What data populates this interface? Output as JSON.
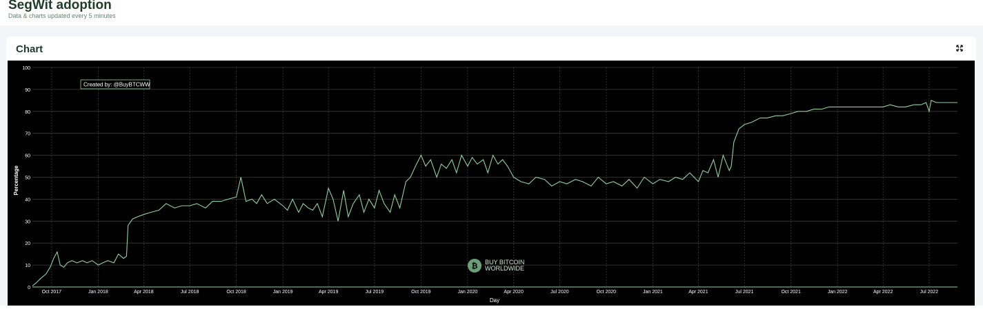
{
  "header": {
    "title": "SegWit adoption",
    "subtitle": "Data & charts updated every 5 minutes"
  },
  "card": {
    "title": "Chart",
    "expand_icon": "expand-icon"
  },
  "colors": {
    "background": "#000000",
    "line": "#8fd4a0",
    "grid": "#3c3c3c",
    "title": "#1f3b2a"
  },
  "chart_data": {
    "type": "line",
    "xlabel": "Day",
    "ylabel": "Percentage",
    "ylim": [
      0,
      100
    ],
    "xlim": [
      "2017-08-24",
      "2022-08-26"
    ],
    "grid": true,
    "y_ticks": [
      0,
      10,
      20,
      30,
      40,
      50,
      60,
      70,
      80,
      90,
      100
    ],
    "x_ticks": [
      {
        "date": "2017-10-01",
        "label": "Oct 2017"
      },
      {
        "date": "2018-01-01",
        "label": "Jan 2018"
      },
      {
        "date": "2018-04-01",
        "label": "Apr 2018"
      },
      {
        "date": "2018-07-01",
        "label": "Jul 2018"
      },
      {
        "date": "2018-10-01",
        "label": "Oct 2018"
      },
      {
        "date": "2019-01-01",
        "label": "Jan 2019"
      },
      {
        "date": "2019-04-01",
        "label": "Apr 2019"
      },
      {
        "date": "2019-07-01",
        "label": "Jul 2019"
      },
      {
        "date": "2019-10-01",
        "label": "Oct 2019"
      },
      {
        "date": "2020-01-01",
        "label": "Jan 2020"
      },
      {
        "date": "2020-04-01",
        "label": "Apr 2020"
      },
      {
        "date": "2020-07-01",
        "label": "Jul 2020"
      },
      {
        "date": "2020-10-01",
        "label": "Oct 2020"
      },
      {
        "date": "2021-01-01",
        "label": "Jan 2021"
      },
      {
        "date": "2021-04-01",
        "label": "Apr 2021"
      },
      {
        "date": "2021-07-01",
        "label": "Jul 2021"
      },
      {
        "date": "2021-10-01",
        "label": "Oct 2021"
      },
      {
        "date": "2022-01-01",
        "label": "Jan 2022"
      },
      {
        "date": "2022-04-01",
        "label": "Apr 2022"
      },
      {
        "date": "2022-07-01",
        "label": "Jul 2022"
      }
    ],
    "annotations": [
      {
        "text": "Created by: @BuyBTCWW",
        "position": "top-left"
      }
    ],
    "watermark": {
      "line1": "BUY BITCOIN",
      "line2": "WORLDWIDE"
    },
    "series": [
      {
        "x": [
          "2017-08-24",
          "2017-09-01",
          "2017-09-10",
          "2017-09-20",
          "2017-09-28",
          "2017-10-05",
          "2017-10-12",
          "2017-10-18",
          "2017-10-25",
          "2017-11-01",
          "2017-11-10",
          "2017-11-20",
          "2017-12-01",
          "2017-12-10",
          "2017-12-20",
          "2018-01-01",
          "2018-01-10",
          "2018-01-20",
          "2018-02-01",
          "2018-02-10",
          "2018-02-20",
          "2018-02-26",
          "2018-03-01",
          "2018-03-10",
          "2018-03-20",
          "2018-04-01",
          "2018-04-15",
          "2018-05-01",
          "2018-05-15",
          "2018-06-01",
          "2018-06-15",
          "2018-07-01",
          "2018-07-15",
          "2018-08-01",
          "2018-08-15",
          "2018-09-01",
          "2018-09-15",
          "2018-10-01",
          "2018-10-10",
          "2018-10-20",
          "2018-11-01",
          "2018-11-10",
          "2018-11-20",
          "2018-12-01",
          "2018-12-15",
          "2019-01-01",
          "2019-01-10",
          "2019-01-20",
          "2019-02-01",
          "2019-02-10",
          "2019-02-20",
          "2019-03-01",
          "2019-03-10",
          "2019-03-20",
          "2019-04-01",
          "2019-04-10",
          "2019-04-20",
          "2019-05-01",
          "2019-05-10",
          "2019-05-20",
          "2019-06-01",
          "2019-06-10",
          "2019-06-20",
          "2019-07-01",
          "2019-07-10",
          "2019-07-20",
          "2019-08-01",
          "2019-08-10",
          "2019-08-20",
          "2019-09-01",
          "2019-09-10",
          "2019-09-20",
          "2019-10-01",
          "2019-10-10",
          "2019-10-20",
          "2019-11-01",
          "2019-11-10",
          "2019-11-20",
          "2019-12-01",
          "2019-12-10",
          "2019-12-20",
          "2020-01-01",
          "2020-01-10",
          "2020-01-20",
          "2020-02-01",
          "2020-02-10",
          "2020-02-20",
          "2020-03-01",
          "2020-03-10",
          "2020-03-20",
          "2020-04-01",
          "2020-04-15",
          "2020-05-01",
          "2020-05-15",
          "2020-06-01",
          "2020-06-15",
          "2020-07-01",
          "2020-07-15",
          "2020-08-01",
          "2020-08-15",
          "2020-09-01",
          "2020-09-15",
          "2020-10-01",
          "2020-10-15",
          "2020-11-01",
          "2020-11-15",
          "2020-12-01",
          "2020-12-15",
          "2021-01-01",
          "2021-01-15",
          "2021-02-01",
          "2021-02-15",
          "2021-03-01",
          "2021-03-15",
          "2021-04-01",
          "2021-04-10",
          "2021-04-20",
          "2021-05-01",
          "2021-05-10",
          "2021-05-20",
          "2021-06-01",
          "2021-06-05",
          "2021-06-10",
          "2021-06-20",
          "2021-07-01",
          "2021-07-15",
          "2021-08-01",
          "2021-08-15",
          "2021-09-01",
          "2021-09-15",
          "2021-10-01",
          "2021-10-15",
          "2021-11-01",
          "2021-11-15",
          "2021-12-01",
          "2021-12-15",
          "2022-01-01",
          "2022-01-15",
          "2022-02-01",
          "2022-02-15",
          "2022-03-01",
          "2022-03-15",
          "2022-04-01",
          "2022-04-15",
          "2022-05-01",
          "2022-05-15",
          "2022-06-01",
          "2022-06-15",
          "2022-06-25",
          "2022-07-01",
          "2022-07-05",
          "2022-07-15",
          "2022-08-01",
          "2022-08-15",
          "2022-08-26"
        ],
        "y": [
          0.5,
          2,
          4,
          6,
          9,
          13,
          16,
          10,
          9,
          11,
          12,
          11,
          12,
          11,
          12,
          10,
          11,
          12,
          11,
          15,
          13,
          14,
          28,
          31,
          32,
          33,
          34,
          35,
          38,
          36,
          37,
          37,
          38,
          36,
          39,
          39,
          40,
          41,
          50,
          39,
          40,
          38,
          42,
          38,
          40,
          37,
          35,
          40,
          34,
          38,
          36,
          35,
          38,
          32,
          45,
          40,
          30,
          44,
          32,
          38,
          42,
          34,
          40,
          36,
          44,
          38,
          34,
          42,
          36,
          48,
          50,
          55,
          60,
          55,
          58,
          50,
          56,
          54,
          58,
          52,
          60,
          55,
          59,
          56,
          58,
          52,
          60,
          56,
          58,
          55,
          50,
          48,
          47,
          50,
          49,
          46,
          48,
          47,
          49,
          48,
          46,
          50,
          47,
          48,
          46,
          49,
          45,
          50,
          47,
          49,
          48,
          50,
          49,
          52,
          48,
          53,
          52,
          58,
          50,
          60,
          53,
          55,
          66,
          72,
          74,
          75,
          77,
          77,
          78,
          78,
          79,
          80,
          80,
          81,
          81,
          82,
          82,
          82,
          82,
          82,
          82,
          82,
          82,
          83,
          82,
          82,
          83,
          83,
          84,
          80,
          85,
          84,
          84,
          84,
          84
        ]
      }
    ]
  }
}
